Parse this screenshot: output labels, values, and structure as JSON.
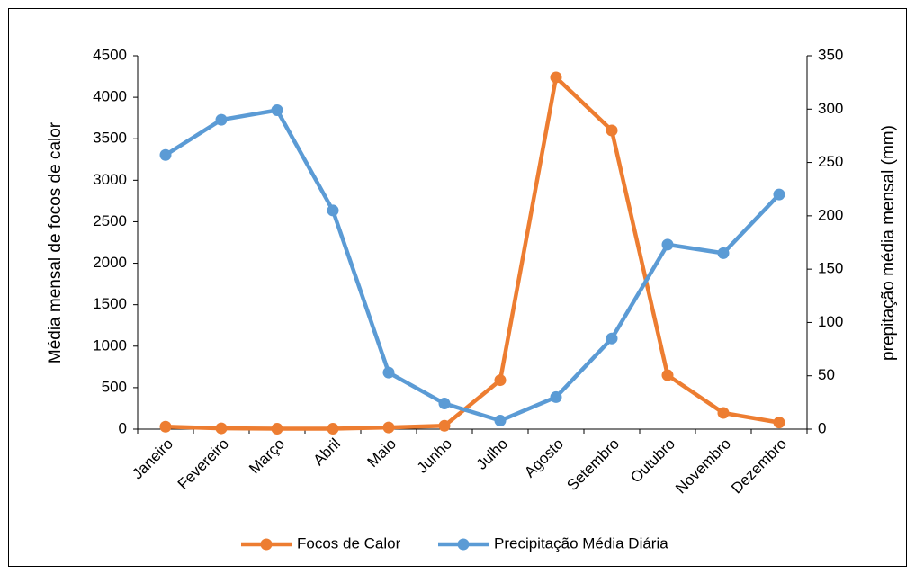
{
  "chart_data": {
    "type": "line",
    "categories": [
      "Janeiro",
      "Fevereiro",
      "Março",
      "Abril",
      "Maio",
      "Junho",
      "Julho",
      "Agosto",
      "Setembro",
      "Outubro",
      "Novembro",
      "Dezembro"
    ],
    "series": [
      {
        "name": "Focos de Calor",
        "color": "#ed7d31",
        "values": [
          30,
          10,
          5,
          5,
          20,
          40,
          590,
          4240,
          3600,
          650,
          195,
          80
        ]
      },
      {
        "name": "Precipitação Média Diária",
        "color": "#5b9bd5",
        "axis": "y2",
        "values": [
          257,
          290,
          299,
          205,
          53,
          24,
          8,
          30,
          85,
          173,
          165,
          220
        ]
      }
    ],
    "ylabel": "Média mensal de focos de calor",
    "y2label": "prepitação média mensal (mm)",
    "ylim": [
      0,
      4500
    ],
    "yticks": [
      0,
      500,
      1000,
      1500,
      2000,
      2500,
      3000,
      3500,
      4000,
      4500
    ],
    "y2lim": [
      0,
      350
    ],
    "y2ticks": [
      0,
      50,
      100,
      150,
      200,
      250,
      300,
      350
    ],
    "legend": "bottom"
  }
}
